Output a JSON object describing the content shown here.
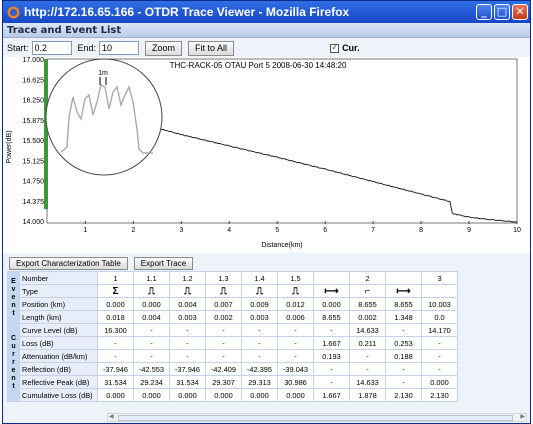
{
  "window": {
    "title": "http://172.16.65.166 - OTDR Trace Viewer - Mozilla Firefox"
  },
  "panel": {
    "title": "Trace and Event List"
  },
  "toolbar": {
    "start_label": "Start:",
    "start_value": "0.2",
    "end_label": "End:",
    "end_value": "10",
    "zoom_label": "Zoom",
    "fit_label": "Fit to All",
    "cur_label": "Cur."
  },
  "buttons": {
    "export_table": "Export Characterization Table",
    "export_trace": "Export Trace"
  },
  "chart_data": {
    "type": "line",
    "title": "THC-RACK-05 OTAU Port 5 2008-06-30 14:48:20",
    "xlabel": "Distance(km)",
    "ylabel": "Power(dB)",
    "xlim": [
      0.2,
      10
    ],
    "ylim": [
      14.0,
      17.0
    ],
    "xticks": [
      1,
      2,
      3,
      4,
      5,
      6,
      7,
      8,
      9,
      10
    ],
    "yticks": [
      "17.000",
      "16.625",
      "16.250",
      "15.875",
      "15.500",
      "15.125",
      "14.750",
      "14.375",
      "14.000"
    ],
    "inset_label": "1m",
    "series": [
      {
        "x": [
          2.3,
          3,
          4,
          5,
          6,
          7,
          8,
          8.6,
          8.65,
          9,
          9.5,
          10
        ],
        "y": [
          15.77,
          15.6,
          15.39,
          15.18,
          14.96,
          14.73,
          14.5,
          14.36,
          14.14,
          14.07,
          14.02,
          13.98
        ]
      }
    ]
  },
  "table": {
    "side_top": [
      "E",
      "v",
      "e",
      "n",
      "t"
    ],
    "side_bottom": [
      "C",
      "u",
      "r",
      "r",
      "e",
      "n",
      "t"
    ],
    "rows_top": [
      {
        "label": "Number",
        "cells": [
          "1",
          "1.1",
          "1.2",
          "1.3",
          "1.4",
          "1.5",
          "",
          "2",
          "",
          "3"
        ]
      },
      {
        "label": "Type",
        "cells": [
          "Σ",
          "⎍",
          "⎍",
          "⎍",
          "⎍",
          "⎍",
          "⟼",
          "⌐",
          "⟼",
          ""
        ]
      },
      {
        "label": "Position (km)",
        "cells": [
          "0.000",
          "0.000",
          "0.004",
          "0.007",
          "0.009",
          "0.012",
          "0.000",
          "8.655",
          "8.655",
          "10.003"
        ]
      },
      {
        "label": "Length (km)",
        "cells": [
          "0.018",
          "0.004",
          "0.003",
          "0.002",
          "0.003",
          "0.006",
          "8.655",
          "0.002",
          "1.348",
          "0.0"
        ]
      }
    ],
    "rows_bottom": [
      {
        "label": "Curve Level (dB)",
        "cells": [
          "16.300",
          "-",
          "-",
          "-",
          "-",
          "-",
          "-",
          "14.633",
          "-",
          "14.170"
        ]
      },
      {
        "label": "Loss (dB)",
        "cells": [
          "-",
          "-",
          "-",
          "-",
          "-",
          "-",
          "1.667",
          "0.211",
          "0.253",
          "-"
        ]
      },
      {
        "label": "Attenuation (dB/km)",
        "cells": [
          "-",
          "-",
          "-",
          "-",
          "-",
          "-",
          "0.193",
          "-",
          "0.188",
          "-"
        ]
      },
      {
        "label": "Reflection (dB)",
        "cells": [
          "-37.946",
          "-42.553",
          "-37.946",
          "-42.409",
          "-42.395",
          "-39.043",
          "-",
          "-",
          "-",
          "-"
        ]
      },
      {
        "label": "Reflective Peak (dB)",
        "cells": [
          "31.534",
          "29.234",
          "31.534",
          "29.307",
          "29.313",
          "30.986",
          "-",
          "14.633",
          "-",
          "0.000"
        ]
      },
      {
        "label": "Cumulative Loss (dB)",
        "cells": [
          "0.000",
          "0.000",
          "0.000",
          "0.000",
          "0.000",
          "0.000",
          "1.667",
          "1.878",
          "2.130",
          "2.130"
        ]
      }
    ]
  }
}
